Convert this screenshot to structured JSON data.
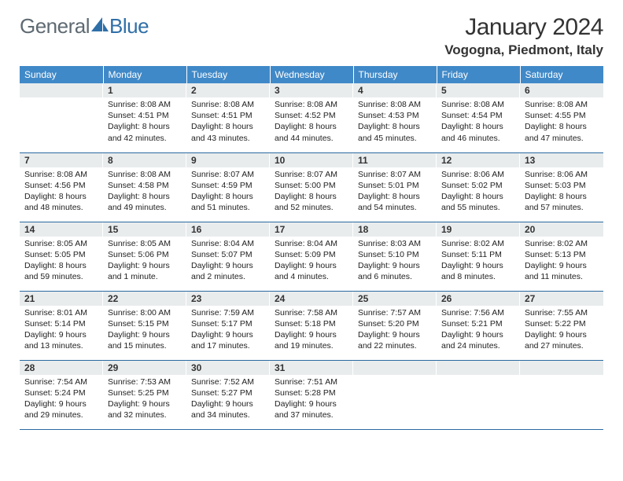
{
  "logo": {
    "part1": "General",
    "part2": "Blue"
  },
  "title": "January 2024",
  "location": "Vogogna, Piedmont, Italy",
  "colors": {
    "header_bg": "#4089c8",
    "daynum_bg": "#e9eced",
    "row_border": "#2a6aa0",
    "logo_gray": "#5f6a72",
    "logo_blue": "#2f6fa8"
  },
  "weekdays": [
    "Sunday",
    "Monday",
    "Tuesday",
    "Wednesday",
    "Thursday",
    "Friday",
    "Saturday"
  ],
  "weeks": [
    [
      {
        "n": "",
        "l1": "",
        "l2": "",
        "l3": "",
        "l4": ""
      },
      {
        "n": "1",
        "l1": "Sunrise: 8:08 AM",
        "l2": "Sunset: 4:51 PM",
        "l3": "Daylight: 8 hours",
        "l4": "and 42 minutes."
      },
      {
        "n": "2",
        "l1": "Sunrise: 8:08 AM",
        "l2": "Sunset: 4:51 PM",
        "l3": "Daylight: 8 hours",
        "l4": "and 43 minutes."
      },
      {
        "n": "3",
        "l1": "Sunrise: 8:08 AM",
        "l2": "Sunset: 4:52 PM",
        "l3": "Daylight: 8 hours",
        "l4": "and 44 minutes."
      },
      {
        "n": "4",
        "l1": "Sunrise: 8:08 AM",
        "l2": "Sunset: 4:53 PM",
        "l3": "Daylight: 8 hours",
        "l4": "and 45 minutes."
      },
      {
        "n": "5",
        "l1": "Sunrise: 8:08 AM",
        "l2": "Sunset: 4:54 PM",
        "l3": "Daylight: 8 hours",
        "l4": "and 46 minutes."
      },
      {
        "n": "6",
        "l1": "Sunrise: 8:08 AM",
        "l2": "Sunset: 4:55 PM",
        "l3": "Daylight: 8 hours",
        "l4": "and 47 minutes."
      }
    ],
    [
      {
        "n": "7",
        "l1": "Sunrise: 8:08 AM",
        "l2": "Sunset: 4:56 PM",
        "l3": "Daylight: 8 hours",
        "l4": "and 48 minutes."
      },
      {
        "n": "8",
        "l1": "Sunrise: 8:08 AM",
        "l2": "Sunset: 4:58 PM",
        "l3": "Daylight: 8 hours",
        "l4": "and 49 minutes."
      },
      {
        "n": "9",
        "l1": "Sunrise: 8:07 AM",
        "l2": "Sunset: 4:59 PM",
        "l3": "Daylight: 8 hours",
        "l4": "and 51 minutes."
      },
      {
        "n": "10",
        "l1": "Sunrise: 8:07 AM",
        "l2": "Sunset: 5:00 PM",
        "l3": "Daylight: 8 hours",
        "l4": "and 52 minutes."
      },
      {
        "n": "11",
        "l1": "Sunrise: 8:07 AM",
        "l2": "Sunset: 5:01 PM",
        "l3": "Daylight: 8 hours",
        "l4": "and 54 minutes."
      },
      {
        "n": "12",
        "l1": "Sunrise: 8:06 AM",
        "l2": "Sunset: 5:02 PM",
        "l3": "Daylight: 8 hours",
        "l4": "and 55 minutes."
      },
      {
        "n": "13",
        "l1": "Sunrise: 8:06 AM",
        "l2": "Sunset: 5:03 PM",
        "l3": "Daylight: 8 hours",
        "l4": "and 57 minutes."
      }
    ],
    [
      {
        "n": "14",
        "l1": "Sunrise: 8:05 AM",
        "l2": "Sunset: 5:05 PM",
        "l3": "Daylight: 8 hours",
        "l4": "and 59 minutes."
      },
      {
        "n": "15",
        "l1": "Sunrise: 8:05 AM",
        "l2": "Sunset: 5:06 PM",
        "l3": "Daylight: 9 hours",
        "l4": "and 1 minute."
      },
      {
        "n": "16",
        "l1": "Sunrise: 8:04 AM",
        "l2": "Sunset: 5:07 PM",
        "l3": "Daylight: 9 hours",
        "l4": "and 2 minutes."
      },
      {
        "n": "17",
        "l1": "Sunrise: 8:04 AM",
        "l2": "Sunset: 5:09 PM",
        "l3": "Daylight: 9 hours",
        "l4": "and 4 minutes."
      },
      {
        "n": "18",
        "l1": "Sunrise: 8:03 AM",
        "l2": "Sunset: 5:10 PM",
        "l3": "Daylight: 9 hours",
        "l4": "and 6 minutes."
      },
      {
        "n": "19",
        "l1": "Sunrise: 8:02 AM",
        "l2": "Sunset: 5:11 PM",
        "l3": "Daylight: 9 hours",
        "l4": "and 8 minutes."
      },
      {
        "n": "20",
        "l1": "Sunrise: 8:02 AM",
        "l2": "Sunset: 5:13 PM",
        "l3": "Daylight: 9 hours",
        "l4": "and 11 minutes."
      }
    ],
    [
      {
        "n": "21",
        "l1": "Sunrise: 8:01 AM",
        "l2": "Sunset: 5:14 PM",
        "l3": "Daylight: 9 hours",
        "l4": "and 13 minutes."
      },
      {
        "n": "22",
        "l1": "Sunrise: 8:00 AM",
        "l2": "Sunset: 5:15 PM",
        "l3": "Daylight: 9 hours",
        "l4": "and 15 minutes."
      },
      {
        "n": "23",
        "l1": "Sunrise: 7:59 AM",
        "l2": "Sunset: 5:17 PM",
        "l3": "Daylight: 9 hours",
        "l4": "and 17 minutes."
      },
      {
        "n": "24",
        "l1": "Sunrise: 7:58 AM",
        "l2": "Sunset: 5:18 PM",
        "l3": "Daylight: 9 hours",
        "l4": "and 19 minutes."
      },
      {
        "n": "25",
        "l1": "Sunrise: 7:57 AM",
        "l2": "Sunset: 5:20 PM",
        "l3": "Daylight: 9 hours",
        "l4": "and 22 minutes."
      },
      {
        "n": "26",
        "l1": "Sunrise: 7:56 AM",
        "l2": "Sunset: 5:21 PM",
        "l3": "Daylight: 9 hours",
        "l4": "and 24 minutes."
      },
      {
        "n": "27",
        "l1": "Sunrise: 7:55 AM",
        "l2": "Sunset: 5:22 PM",
        "l3": "Daylight: 9 hours",
        "l4": "and 27 minutes."
      }
    ],
    [
      {
        "n": "28",
        "l1": "Sunrise: 7:54 AM",
        "l2": "Sunset: 5:24 PM",
        "l3": "Daylight: 9 hours",
        "l4": "and 29 minutes."
      },
      {
        "n": "29",
        "l1": "Sunrise: 7:53 AM",
        "l2": "Sunset: 5:25 PM",
        "l3": "Daylight: 9 hours",
        "l4": "and 32 minutes."
      },
      {
        "n": "30",
        "l1": "Sunrise: 7:52 AM",
        "l2": "Sunset: 5:27 PM",
        "l3": "Daylight: 9 hours",
        "l4": "and 34 minutes."
      },
      {
        "n": "31",
        "l1": "Sunrise: 7:51 AM",
        "l2": "Sunset: 5:28 PM",
        "l3": "Daylight: 9 hours",
        "l4": "and 37 minutes."
      },
      {
        "n": "",
        "l1": "",
        "l2": "",
        "l3": "",
        "l4": ""
      },
      {
        "n": "",
        "l1": "",
        "l2": "",
        "l3": "",
        "l4": ""
      },
      {
        "n": "",
        "l1": "",
        "l2": "",
        "l3": "",
        "l4": ""
      }
    ]
  ]
}
